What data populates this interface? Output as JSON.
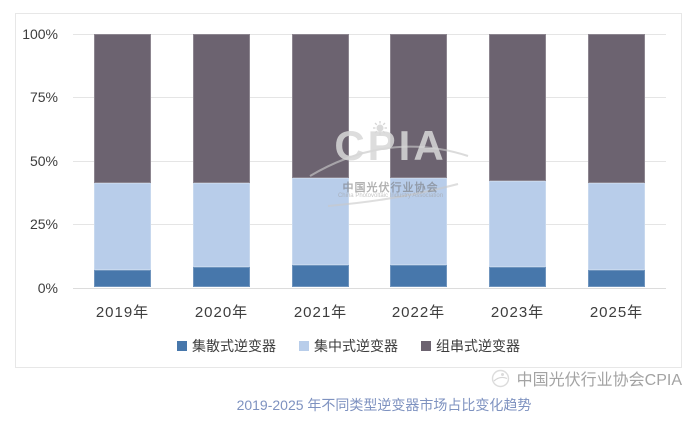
{
  "chart_data": {
    "type": "bar",
    "stacked": true,
    "categories": [
      "2019年",
      "2020年",
      "2021年",
      "2022年",
      "2023年",
      "2025年"
    ],
    "series": [
      {
        "name": "集散式逆变器",
        "color": "#4777AB",
        "values": [
          7,
          8,
          9,
          9,
          8,
          7
        ]
      },
      {
        "name": "集中式逆变器",
        "color": "#B8CDEA",
        "values": [
          34,
          33,
          34,
          34,
          34,
          34
        ]
      },
      {
        "name": "组串式逆变器",
        "color": "#6C6370",
        "values": [
          59,
          59,
          57,
          57,
          58,
          59
        ]
      }
    ],
    "y_ticks": [
      "0%",
      "25%",
      "50%",
      "75%",
      "100%"
    ],
    "ylim": [
      0,
      100
    ],
    "grid": true,
    "legend_position": "bottom",
    "title": ""
  },
  "watermark": {
    "logo_text": "CPIA",
    "org_cn": "中国光伏行业协会",
    "org_en": "China Photovoltaic Industry Association"
  },
  "attribution": {
    "icon": "cpia-logo-icon",
    "text": "中国光伏行业协会CPIA"
  },
  "caption": {
    "text": "2019-2025 年不同类型逆变器市场占比变化趋势",
    "color": "#7E92C0"
  }
}
